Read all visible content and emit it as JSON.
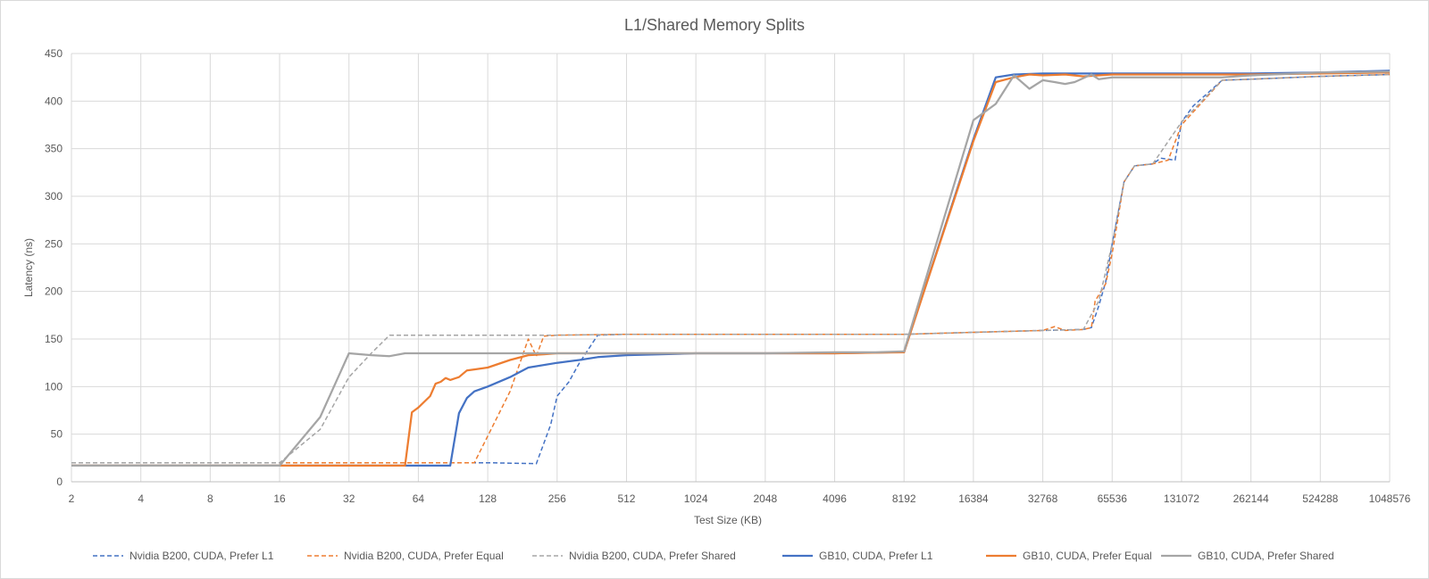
{
  "chart_data": {
    "type": "line",
    "title": "L1/Shared Memory Splits",
    "xlabel": "Test Size (KB)",
    "ylabel": "Latency (ns)",
    "x_scale": "log2",
    "x_ticks": [
      2,
      4,
      8,
      16,
      32,
      64,
      128,
      256,
      512,
      1024,
      2048,
      4096,
      8192,
      16384,
      32768,
      65536,
      131072,
      262144,
      524288,
      1048576
    ],
    "xlim": [
      2,
      1048576
    ],
    "ylim": [
      0,
      450
    ],
    "y_ticks": [
      0,
      50,
      100,
      150,
      200,
      250,
      300,
      350,
      400,
      450
    ],
    "grid": true,
    "legend_position": "bottom",
    "series": [
      {
        "name": "Nvidia B200, CUDA, Prefer L1",
        "color": "#4472c4",
        "dash": true,
        "points": [
          [
            2,
            20
          ],
          [
            16,
            20
          ],
          [
            64,
            20
          ],
          [
            128,
            20
          ],
          [
            208,
            19
          ],
          [
            224,
            40
          ],
          [
            240,
            60
          ],
          [
            256,
            90
          ],
          [
            288,
            105
          ],
          [
            320,
            125
          ],
          [
            384,
            154
          ],
          [
            512,
            155
          ],
          [
            1024,
            155
          ],
          [
            2048,
            155
          ],
          [
            4096,
            155
          ],
          [
            8192,
            155
          ],
          [
            16384,
            157
          ],
          [
            32768,
            159
          ],
          [
            49152,
            160
          ],
          [
            53248,
            162
          ],
          [
            57344,
            185
          ],
          [
            61440,
            210
          ],
          [
            65536,
            250
          ],
          [
            73728,
            315
          ],
          [
            81920,
            332
          ],
          [
            98304,
            334
          ],
          [
            106496,
            340
          ],
          [
            122880,
            338
          ],
          [
            131072,
            378
          ],
          [
            147456,
            395
          ],
          [
            196608,
            422
          ],
          [
            262144,
            423
          ],
          [
            524288,
            426
          ],
          [
            1048576,
            428
          ]
        ]
      },
      {
        "name": "Nvidia B200, CUDA, Prefer Equal",
        "color": "#ed7d31",
        "dash": true,
        "points": [
          [
            2,
            20
          ],
          [
            16,
            20
          ],
          [
            64,
            20
          ],
          [
            112,
            20
          ],
          [
            128,
            48
          ],
          [
            160,
            95
          ],
          [
            192,
            150
          ],
          [
            208,
            132
          ],
          [
            224,
            153
          ],
          [
            256,
            154
          ],
          [
            512,
            155
          ],
          [
            1024,
            155
          ],
          [
            2048,
            155
          ],
          [
            4096,
            155
          ],
          [
            8192,
            155
          ],
          [
            16384,
            157
          ],
          [
            32768,
            159
          ],
          [
            36864,
            163
          ],
          [
            40960,
            159
          ],
          [
            49152,
            160
          ],
          [
            53248,
            162
          ],
          [
            55296,
            190
          ],
          [
            61440,
            208
          ],
          [
            65536,
            240
          ],
          [
            73728,
            315
          ],
          [
            81920,
            332
          ],
          [
            98304,
            334
          ],
          [
            114688,
            338
          ],
          [
            131072,
            375
          ],
          [
            196608,
            422
          ],
          [
            262144,
            423
          ],
          [
            524288,
            426
          ],
          [
            1048576,
            428
          ]
        ]
      },
      {
        "name": "Nvidia B200, CUDA, Prefer Shared",
        "color": "#a5a5a5",
        "dash": true,
        "points": [
          [
            2,
            20
          ],
          [
            16,
            20
          ],
          [
            24,
            55
          ],
          [
            32,
            110
          ],
          [
            40,
            135
          ],
          [
            48,
            154
          ],
          [
            64,
            154
          ],
          [
            128,
            154
          ],
          [
            256,
            154
          ],
          [
            512,
            155
          ],
          [
            1024,
            155
          ],
          [
            2048,
            155
          ],
          [
            4096,
            155
          ],
          [
            8192,
            155
          ],
          [
            16384,
            157
          ],
          [
            32768,
            159
          ],
          [
            49152,
            160
          ],
          [
            57344,
            190
          ],
          [
            65536,
            250
          ],
          [
            73728,
            315
          ],
          [
            81920,
            332
          ],
          [
            98304,
            334
          ],
          [
            131072,
            378
          ],
          [
            196608,
            422
          ],
          [
            262144,
            423
          ],
          [
            524288,
            426
          ],
          [
            1048576,
            428
          ]
        ]
      },
      {
        "name": "GB10, CUDA, Prefer L1",
        "color": "#4472c4",
        "dash": false,
        "points": [
          [
            2,
            17
          ],
          [
            16,
            17
          ],
          [
            64,
            17
          ],
          [
            88,
            17
          ],
          [
            96,
            72
          ],
          [
            104,
            88
          ],
          [
            112,
            95
          ],
          [
            128,
            100
          ],
          [
            160,
            110
          ],
          [
            192,
            120
          ],
          [
            256,
            125
          ],
          [
            320,
            128
          ],
          [
            384,
            131
          ],
          [
            512,
            133
          ],
          [
            1024,
            135
          ],
          [
            2048,
            135
          ],
          [
            4096,
            135
          ],
          [
            7168,
            136
          ],
          [
            8192,
            136
          ],
          [
            16384,
            360
          ],
          [
            20480,
            425
          ],
          [
            24576,
            428
          ],
          [
            32768,
            429
          ],
          [
            65536,
            429
          ],
          [
            131072,
            429
          ],
          [
            262144,
            429
          ],
          [
            524288,
            430
          ],
          [
            1048576,
            432
          ]
        ]
      },
      {
        "name": "GB10, CUDA, Prefer Equal",
        "color": "#ed7d31",
        "dash": false,
        "points": [
          [
            2,
            17
          ],
          [
            16,
            17
          ],
          [
            56,
            17
          ],
          [
            60,
            73
          ],
          [
            64,
            78
          ],
          [
            72,
            90
          ],
          [
            76,
            103
          ],
          [
            80,
            105
          ],
          [
            84,
            109
          ],
          [
            88,
            107
          ],
          [
            96,
            110
          ],
          [
            104,
            117
          ],
          [
            112,
            118
          ],
          [
            128,
            120
          ],
          [
            160,
            128
          ],
          [
            192,
            133
          ],
          [
            224,
            134
          ],
          [
            256,
            135
          ],
          [
            512,
            135
          ],
          [
            1024,
            135
          ],
          [
            2048,
            135
          ],
          [
            4096,
            135
          ],
          [
            8192,
            136
          ],
          [
            16384,
            358
          ],
          [
            20480,
            420
          ],
          [
            24576,
            425
          ],
          [
            28672,
            428
          ],
          [
            32768,
            427
          ],
          [
            40960,
            428
          ],
          [
            49152,
            426
          ],
          [
            65536,
            428
          ],
          [
            131072,
            428
          ],
          [
            262144,
            428
          ],
          [
            524288,
            429
          ],
          [
            1048576,
            430
          ]
        ]
      },
      {
        "name": "GB10, CUDA, Prefer Shared",
        "color": "#a5a5a5",
        "dash": false,
        "points": [
          [
            2,
            17
          ],
          [
            16,
            17
          ],
          [
            24,
            68
          ],
          [
            32,
            135
          ],
          [
            40,
            133
          ],
          [
            48,
            132
          ],
          [
            56,
            135
          ],
          [
            64,
            135
          ],
          [
            96,
            135
          ],
          [
            128,
            135
          ],
          [
            256,
            135
          ],
          [
            512,
            135
          ],
          [
            1024,
            135
          ],
          [
            2048,
            135
          ],
          [
            4096,
            136
          ],
          [
            6144,
            136
          ],
          [
            8192,
            137
          ],
          [
            16384,
            380
          ],
          [
            20480,
            397
          ],
          [
            24576,
            427
          ],
          [
            28672,
            413
          ],
          [
            32768,
            422
          ],
          [
            36864,
            420
          ],
          [
            40960,
            418
          ],
          [
            45056,
            420
          ],
          [
            53248,
            428
          ],
          [
            57344,
            423
          ],
          [
            65536,
            425
          ],
          [
            131072,
            425
          ],
          [
            196608,
            425
          ],
          [
            262144,
            427
          ],
          [
            524288,
            430
          ],
          [
            1048576,
            431
          ]
        ]
      }
    ]
  }
}
